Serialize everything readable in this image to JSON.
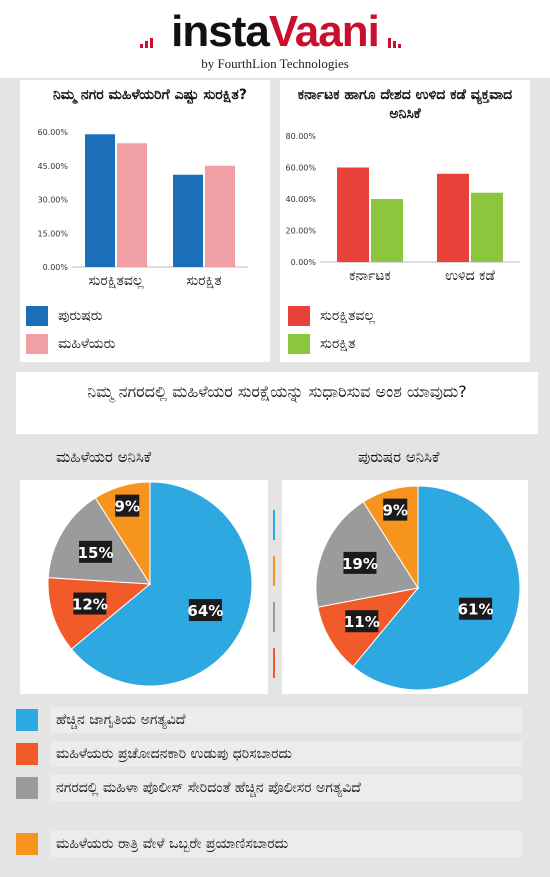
{
  "header": {
    "logo_part1": "insta",
    "logo_part2": "Vaani",
    "byline": "by FourthLion Technologies"
  },
  "chart_data": [
    {
      "type": "bar",
      "title": "ನಿಮ್ಮ ನಗರ ಮಹಿಳೆಯರಿಗೆ ಎಷ್ಟು ಸುರಕ್ಷಿತ?",
      "categories": [
        "ಸುರಕ್ಷಿತವಲ್ಲ",
        "ಸುರಕ್ಷಿತ"
      ],
      "series": [
        {
          "name": "ಪುರುಷರು",
          "values": [
            59,
            41
          ],
          "color": "#1a6fb8"
        },
        {
          "name": "ಮಹಿಳೆಯರು",
          "values": [
            55,
            45
          ],
          "color": "#f0a0a4"
        }
      ],
      "yticks": [
        "60.00%",
        "45.00%",
        "30.00%",
        "15.00%",
        "0.00%"
      ],
      "ylim": [
        0,
        60
      ],
      "grid": false
    },
    {
      "type": "bar",
      "title": "ಕರ್ನಾಟಕ ಹಾಗೂ ದೇಶದ ಉಳಿದ ಕಡೆ ವ್ಯಕ್ತವಾದ ಅನಿಸಿಕೆ",
      "categories": [
        "ಕರ್ನಾಟಕ",
        "ಉಳಿದ ಕಡೆ"
      ],
      "series": [
        {
          "name": "ಸುರಕ್ಷಿತವಲ್ಲ",
          "values": [
            60,
            56
          ],
          "color": "#e8413a"
        },
        {
          "name": "ಸುರಕ್ಷಿತ",
          "values": [
            40,
            44
          ],
          "color": "#8cc63f"
        }
      ],
      "yticks": [
        "80.00%",
        "60.00%",
        "40.00%",
        "20.00%",
        "0.00%"
      ],
      "ylim": [
        0,
        80
      ],
      "grid": false
    },
    {
      "type": "pie",
      "title": "ಮಹಿಳೆಯರ ಅನಿಸಿಕೆ",
      "slices": [
        {
          "label": "64%",
          "value": 64,
          "color": "#2ea8e0"
        },
        {
          "label": "12%",
          "value": 12,
          "color": "#f15a29"
        },
        {
          "label": "15%",
          "value": 15,
          "color": "#9b9b9b"
        },
        {
          "label": "9%",
          "value": 9,
          "color": "#f7941d"
        }
      ]
    },
    {
      "type": "pie",
      "title": "ಪುರುಷರ ಅನಿಸಿಕೆ",
      "slices": [
        {
          "label": "61%",
          "value": 61,
          "color": "#2ea8e0"
        },
        {
          "label": "11%",
          "value": 11,
          "color": "#f15a29"
        },
        {
          "label": "19%",
          "value": 19,
          "color": "#9b9b9b"
        },
        {
          "label": "9%",
          "value": 9,
          "color": "#f7941d"
        }
      ]
    }
  ],
  "question": "ನಿಮ್ಮ ನಗರದಲ್ಲಿ ಮಹಿಳೆಯರ ಸುರಕ್ಷೆಯನ್ನು ಸುಧಾರಿಸುವ ಅಂಶ ಯಾವುದು?",
  "pie_legend": [
    {
      "label": "ಹೆಚ್ಚಿನ ಜಾಗೃತಿಯ ಅಗತ್ಯವಿದೆ",
      "color": "#2ea8e0"
    },
    {
      "label": "ಮಹಿಳೆಯರು ಪ್ರಚೋದನಕಾರಿ ಉಡುಪು ಧರಿಸಬಾರದು",
      "color": "#f15a29"
    },
    {
      "label": "ನಗರದಲ್ಲಿ ಮಹಿಳಾ ಪೊಲೀಸ್ ಸೇರಿದಂತೆ ಹೆಚ್ಚಿನ ಪೊಲೀಸರ ಅಗತ್ಯವಿದೆ",
      "color": "#9b9b9b"
    },
    {
      "label": "ಮಹಿಳೆಯರು ರಾತ್ರಿ ವೇಳೆ ಒಬ್ಬರೇ ಪ್ರಯಾಣಿಸಬಾರದು",
      "color": "#f7941d"
    }
  ]
}
